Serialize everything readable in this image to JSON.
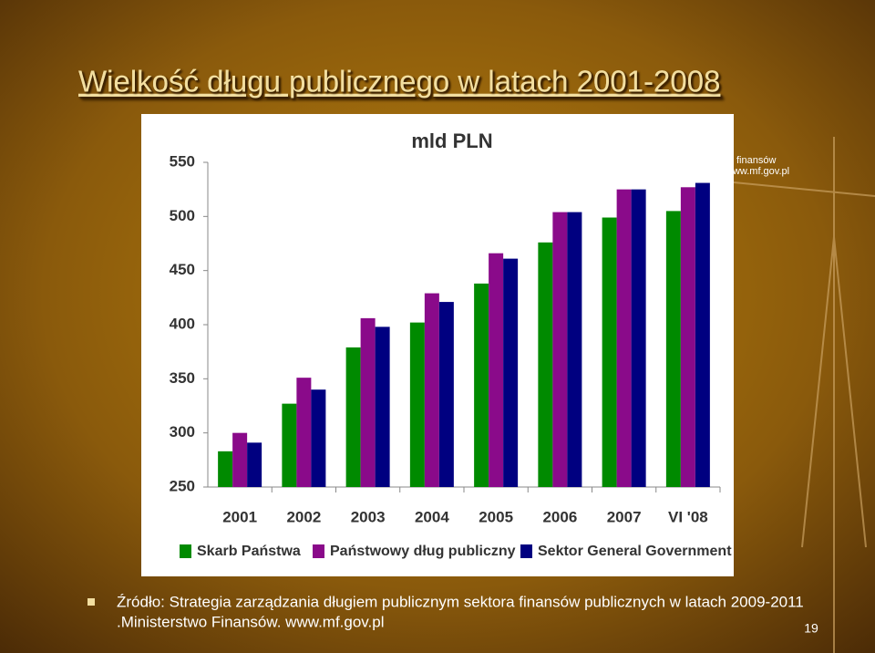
{
  "slide": {
    "title": "Wielkość długu publicznego w latach 2001-2008",
    "background_text": [
      "finansów",
      "www.mf.gov.pl"
    ],
    "source_lines": [
      "Źródło: Strategia zarządzania długiem publicznym sektora finansów publicznych w latach 2009-2011",
      ".Ministerstwo Finansów. www.mf.gov.pl"
    ],
    "page_number": "19"
  },
  "chart_data": {
    "type": "bar",
    "title": "mld PLN",
    "categories": [
      "2001",
      "2002",
      "2003",
      "2004",
      "2005",
      "2006",
      "2007",
      "VI '08"
    ],
    "series": [
      {
        "name": "Skarb Państwa",
        "color": "#008a00",
        "values": [
          283,
          327,
          379,
          402,
          438,
          476,
          499,
          505
        ]
      },
      {
        "name": "Państwowy dług publiczny",
        "color": "#8a0a8a",
        "values": [
          300,
          351,
          406,
          429,
          466,
          504,
          525,
          527
        ]
      },
      {
        "name": "Sektor General Government",
        "color": "#000080",
        "values": [
          291,
          340,
          398,
          421,
          461,
          504,
          525,
          531
        ]
      }
    ],
    "ylim": [
      250,
      550
    ],
    "yticks": [
      250,
      300,
      350,
      400,
      450,
      500,
      550
    ],
    "grid": false,
    "legend": "bottom"
  }
}
